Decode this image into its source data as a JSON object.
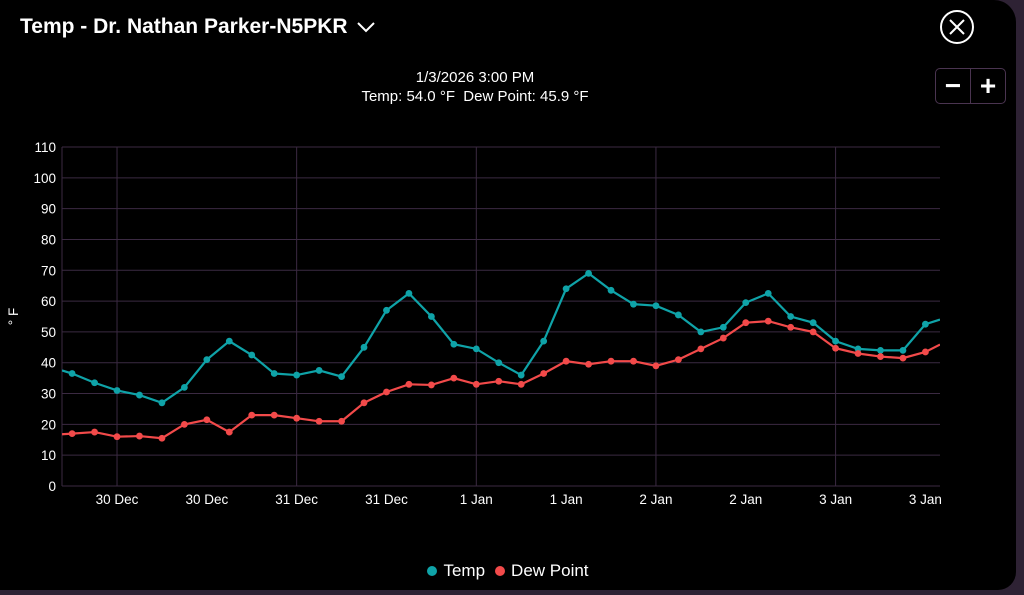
{
  "header": {
    "title": "Temp - Dr. Nathan Parker-N5PKR",
    "dropdown_icon": "chevron-down-icon",
    "close_icon": "close-icon"
  },
  "readout": {
    "datetime": "1/3/2026 3:00 PM",
    "values": "Temp: 54.0 °F  Dew Point: 45.9 °F"
  },
  "zoom": {
    "minus": "−",
    "plus": "+"
  },
  "chart_data": {
    "type": "line",
    "ylabel": "° F",
    "ylim": [
      0,
      110
    ],
    "yticks": [
      0,
      10,
      20,
      30,
      40,
      50,
      60,
      70,
      80,
      90,
      100,
      110
    ],
    "xticks": [
      {
        "i": 2,
        "label": "30 Dec"
      },
      {
        "i": 6,
        "label": "30 Dec"
      },
      {
        "i": 10,
        "label": "31 Dec"
      },
      {
        "i": 14,
        "label": "31 Dec"
      },
      {
        "i": 18,
        "label": "1 Jan"
      },
      {
        "i": 22,
        "label": "1 Jan"
      },
      {
        "i": 26,
        "label": "2 Jan"
      },
      {
        "i": 30,
        "label": "2 Jan"
      },
      {
        "i": 34,
        "label": "3 Jan"
      },
      {
        "i": 38,
        "label": "3 Jan"
      }
    ],
    "xlim": [
      -0.45,
      38.65
    ],
    "day_lines": [
      2,
      10,
      18,
      26,
      34
    ],
    "legend_position": "bottom",
    "series": [
      {
        "name": "Temp",
        "color": "#0fa3a8",
        "edge_left": 37.5,
        "edge_right": 54.0,
        "values": [
          36.5,
          33.5,
          31,
          29.5,
          27,
          32,
          41,
          47,
          42.5,
          36.5,
          36,
          37.5,
          35.5,
          45,
          57,
          62.5,
          55,
          46,
          44.5,
          40,
          36,
          47,
          64,
          69,
          63.5,
          59,
          58.5,
          55.5,
          50,
          51.5,
          59.5,
          62.5,
          55,
          53,
          47,
          44.5,
          44,
          44,
          52.5
        ]
      },
      {
        "name": "Dew Point",
        "color": "#f24a4a",
        "edge_left": 16.8,
        "edge_right": 45.9,
        "values": [
          17,
          17.5,
          16,
          16.2,
          15.5,
          20,
          21.5,
          17.5,
          23,
          23,
          22,
          21,
          21,
          27,
          30.5,
          33,
          32.8,
          35,
          33,
          34,
          33,
          36.5,
          40.5,
          39.5,
          40.5,
          40.5,
          39,
          41,
          44.5,
          48,
          53,
          53.5,
          51.5,
          50,
          44.7,
          43,
          42,
          41.5,
          43.5
        ]
      }
    ]
  }
}
